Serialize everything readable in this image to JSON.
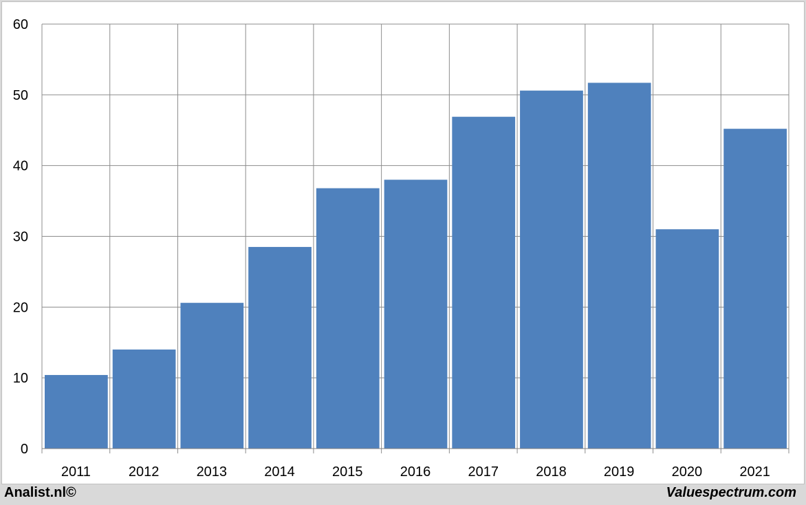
{
  "chart_data": {
    "type": "bar",
    "categories": [
      "2011",
      "2012",
      "2013",
      "2014",
      "2015",
      "2016",
      "2017",
      "2018",
      "2019",
      "2020",
      "2021"
    ],
    "values": [
      10.4,
      14.0,
      20.6,
      28.5,
      36.8,
      38.0,
      46.9,
      50.6,
      51.7,
      31.0,
      45.2
    ],
    "ylim": [
      0,
      60
    ],
    "yticks": [
      "0",
      "10",
      "20",
      "30",
      "40",
      "50",
      "60"
    ],
    "grid": true,
    "bar_color": "#4f81bd",
    "grid_color": "#8c8c8c"
  },
  "footer": {
    "left_text": "Analist.nl©",
    "right_text": "Valuespectrum.com"
  }
}
